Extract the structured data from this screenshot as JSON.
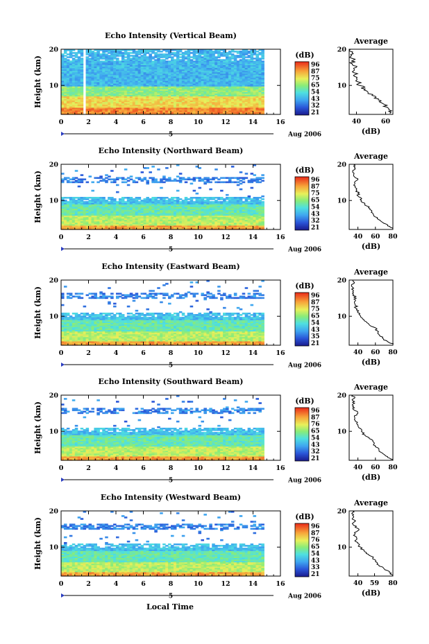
{
  "figure": {
    "xlabel_bottom": "Local Time",
    "date_label": "Aug 2006",
    "day_marker": "5"
  },
  "chart_data": [
    {
      "type": "heatmap",
      "title": "Echo Intensity (Vertical Beam)",
      "ylabel": "Height (km)",
      "x_ticks": [
        "0",
        "2",
        "4",
        "6",
        "8",
        "10",
        "12",
        "14",
        "16"
      ],
      "y_ticks": [
        "20",
        "10"
      ],
      "xlim": [
        0,
        16
      ],
      "ylim": [
        2,
        20
      ],
      "data_extent_x": [
        0,
        14.8
      ],
      "gap": [
        1.6,
        1.75
      ],
      "colorbar": {
        "label": "(dB)",
        "ticks": [
          "96",
          "87",
          "75",
          "65",
          "54",
          "43",
          "32",
          "21"
        ],
        "range": [
          21,
          96
        ]
      },
      "profile": {
        "title": "Average",
        "xlabel": "(dB)",
        "x_ticks": [
          "40",
          "60"
        ],
        "xlim": [
          35,
          65
        ],
        "points": [
          [
            2.2,
            63
          ],
          [
            3,
            64
          ],
          [
            4,
            61
          ],
          [
            5,
            58
          ],
          [
            6,
            55
          ],
          [
            7,
            53
          ],
          [
            8,
            48
          ],
          [
            9,
            46
          ],
          [
            10,
            42
          ],
          [
            11,
            41
          ],
          [
            12,
            40
          ],
          [
            13,
            39
          ],
          [
            14,
            38
          ],
          [
            15,
            40
          ],
          [
            16,
            37
          ],
          [
            17,
            38
          ],
          [
            18,
            36
          ],
          [
            19,
            37
          ],
          [
            20,
            36
          ]
        ]
      }
    },
    {
      "type": "heatmap",
      "title": "Echo Intensity (Northward Beam)",
      "ylabel": "Height (km)",
      "x_ticks": [
        "0",
        "2",
        "4",
        "6",
        "8",
        "10",
        "12",
        "14",
        "16"
      ],
      "y_ticks": [
        "20",
        "10"
      ],
      "xlim": [
        0,
        16
      ],
      "ylim": [
        2,
        20
      ],
      "data_extent_x": [
        0,
        14.8
      ],
      "gap": [
        1.55,
        1.7
      ],
      "colorbar": {
        "label": "(dB)",
        "ticks": [
          "96",
          "87",
          "75",
          "65",
          "54",
          "43",
          "32",
          "21"
        ],
        "range": [
          21,
          96
        ]
      },
      "profile": {
        "title": "Average",
        "xlabel": "(dB)",
        "x_ticks": [
          "40",
          "60",
          "80"
        ],
        "xlim": [
          30,
          80
        ],
        "points": [
          [
            2.2,
            80
          ],
          [
            3,
            74
          ],
          [
            4,
            68
          ],
          [
            5,
            62
          ],
          [
            6,
            58
          ],
          [
            7,
            56
          ],
          [
            8,
            52
          ],
          [
            9,
            48
          ],
          [
            10,
            44
          ],
          [
            11,
            41
          ],
          [
            12,
            40
          ],
          [
            13,
            38
          ],
          [
            14,
            37
          ],
          [
            15,
            36
          ],
          [
            16,
            40
          ],
          [
            17,
            35
          ],
          [
            18,
            34
          ],
          [
            19,
            36
          ],
          [
            20,
            35
          ]
        ]
      }
    },
    {
      "type": "heatmap",
      "title": "Echo Intensity (Eastward Beam)",
      "ylabel": "Height (km)",
      "x_ticks": [
        "0",
        "2",
        "4",
        "6",
        "8",
        "10",
        "12",
        "14",
        "16"
      ],
      "y_ticks": [
        "20",
        "10"
      ],
      "xlim": [
        0,
        16
      ],
      "ylim": [
        2,
        20
      ],
      "data_extent_x": [
        0,
        14.8
      ],
      "gap": [
        1.55,
        1.7
      ],
      "colorbar": {
        "label": "(dB)",
        "ticks": [
          "96",
          "87",
          "75",
          "65",
          "54",
          "43",
          "35",
          "21"
        ],
        "range": [
          21,
          96
        ]
      },
      "profile": {
        "title": "Average",
        "xlabel": "(dB)",
        "x_ticks": [
          "40",
          "60",
          "80"
        ],
        "xlim": [
          30,
          80
        ],
        "points": [
          [
            2.2,
            80
          ],
          [
            3,
            74
          ],
          [
            4,
            68
          ],
          [
            5,
            64
          ],
          [
            6,
            62
          ],
          [
            7,
            58
          ],
          [
            8,
            52
          ],
          [
            9,
            47
          ],
          [
            10,
            43
          ],
          [
            11,
            40
          ],
          [
            12,
            39
          ],
          [
            13,
            37
          ],
          [
            14,
            36
          ],
          [
            15,
            38
          ],
          [
            16,
            35
          ],
          [
            17,
            35
          ],
          [
            18,
            34
          ],
          [
            19,
            35
          ],
          [
            20,
            34
          ]
        ]
      }
    },
    {
      "type": "heatmap",
      "title": "Echo Intensity (Southward Beam)",
      "ylabel": "Height (km)",
      "x_ticks": [
        "0",
        "2",
        "4",
        "6",
        "8",
        "10",
        "12",
        "14",
        "16"
      ],
      "y_ticks": [
        "20",
        "10"
      ],
      "xlim": [
        0,
        16
      ],
      "ylim": [
        2,
        20
      ],
      "data_extent_x": [
        0,
        14.8
      ],
      "gap": [
        1.55,
        1.7
      ],
      "colorbar": {
        "label": "(dB)",
        "ticks": [
          "96",
          "87",
          "76",
          "65",
          "54",
          "43",
          "32",
          "21"
        ],
        "range": [
          21,
          96
        ]
      },
      "profile": {
        "title": "Average",
        "xlabel": "(dB)",
        "x_ticks": [
          "40",
          "60",
          "80"
        ],
        "xlim": [
          30,
          80
        ],
        "points": [
          [
            2.2,
            80
          ],
          [
            3,
            74
          ],
          [
            4,
            68
          ],
          [
            5,
            64
          ],
          [
            6,
            60
          ],
          [
            7,
            58
          ],
          [
            8,
            53
          ],
          [
            9,
            48
          ],
          [
            10,
            44
          ],
          [
            11,
            41
          ],
          [
            12,
            39
          ],
          [
            13,
            37
          ],
          [
            14,
            36
          ],
          [
            15,
            40
          ],
          [
            16,
            35
          ],
          [
            17,
            35
          ],
          [
            18,
            34
          ],
          [
            19,
            35
          ],
          [
            20,
            34
          ]
        ]
      }
    },
    {
      "type": "heatmap",
      "title": "Echo Intensity (Westward Beam)",
      "ylabel": "Height (km)",
      "x_ticks": [
        "0",
        "2",
        "4",
        "6",
        "8",
        "10",
        "12",
        "14",
        "16"
      ],
      "y_ticks": [
        "20",
        "10"
      ],
      "xlim": [
        0,
        16
      ],
      "ylim": [
        2,
        20
      ],
      "data_extent_x": [
        0,
        14.8
      ],
      "gap": [
        1.55,
        1.7
      ],
      "colorbar": {
        "label": "(dB)",
        "ticks": [
          "96",
          "87",
          "76",
          "65",
          "54",
          "43",
          "33",
          "21"
        ],
        "range": [
          21,
          96
        ]
      },
      "profile": {
        "title": "Average",
        "xlabel": "(dB)",
        "x_ticks": [
          "40",
          "59",
          "80"
        ],
        "xlim": [
          30,
          80
        ],
        "points": [
          [
            2.2,
            80
          ],
          [
            3,
            76
          ],
          [
            4,
            70
          ],
          [
            5,
            64
          ],
          [
            6,
            60
          ],
          [
            7,
            57
          ],
          [
            8,
            52
          ],
          [
            9,
            47
          ],
          [
            10,
            43
          ],
          [
            11,
            40
          ],
          [
            12,
            38
          ],
          [
            13,
            37
          ],
          [
            14,
            36
          ],
          [
            15,
            41
          ],
          [
            16,
            35
          ],
          [
            17,
            36
          ],
          [
            18,
            34
          ],
          [
            19,
            35
          ],
          [
            20,
            34
          ]
        ]
      }
    }
  ]
}
